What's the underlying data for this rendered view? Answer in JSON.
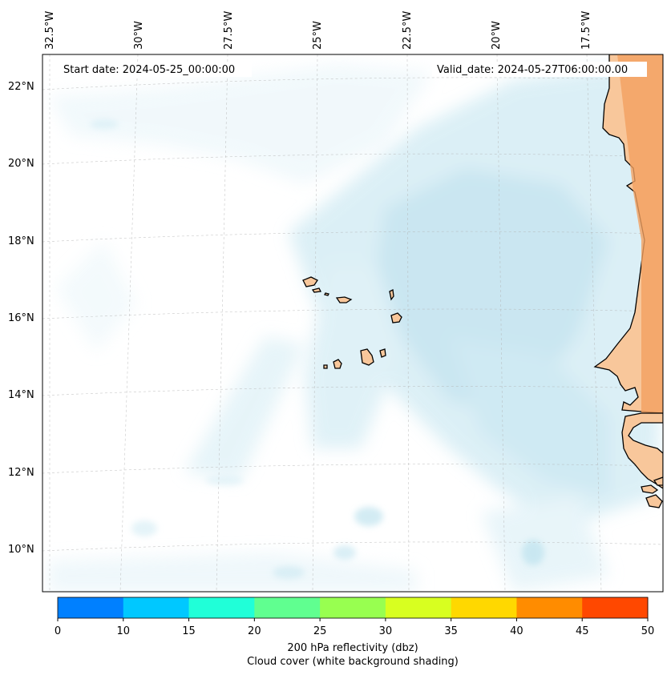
{
  "map": {
    "start_date": "Start date: 2024-05-25_00:00:00",
    "valid_date": "Valid_date: 2024-05-27T06:00:00.00",
    "longitude_labels": [
      "32.5°W",
      "30°W",
      "27.5°W",
      "25°W",
      "22.5°W",
      "20°W",
      "17.5°W"
    ],
    "latitude_labels": [
      "22°N",
      "20°N",
      "18°N",
      "16°N",
      "14°N",
      "12°N",
      "10°N"
    ],
    "cloud_color": "#a9d9ea",
    "land_color": "#f8c79b",
    "land_hot_color": "#f2a060"
  },
  "colorbar": {
    "title": "200 hPa reflectivity (dbz)",
    "subtitle": "Cloud cover (white background shading)",
    "ticks": [
      "0",
      "10",
      "15",
      "20",
      "25",
      "30",
      "35",
      "40",
      "45",
      "50"
    ],
    "colors": [
      "#0080ff",
      "#00c8ff",
      "#20ffd8",
      "#60ff90",
      "#98ff50",
      "#d8ff20",
      "#ffd800",
      "#ff8c00",
      "#ff4800"
    ]
  }
}
